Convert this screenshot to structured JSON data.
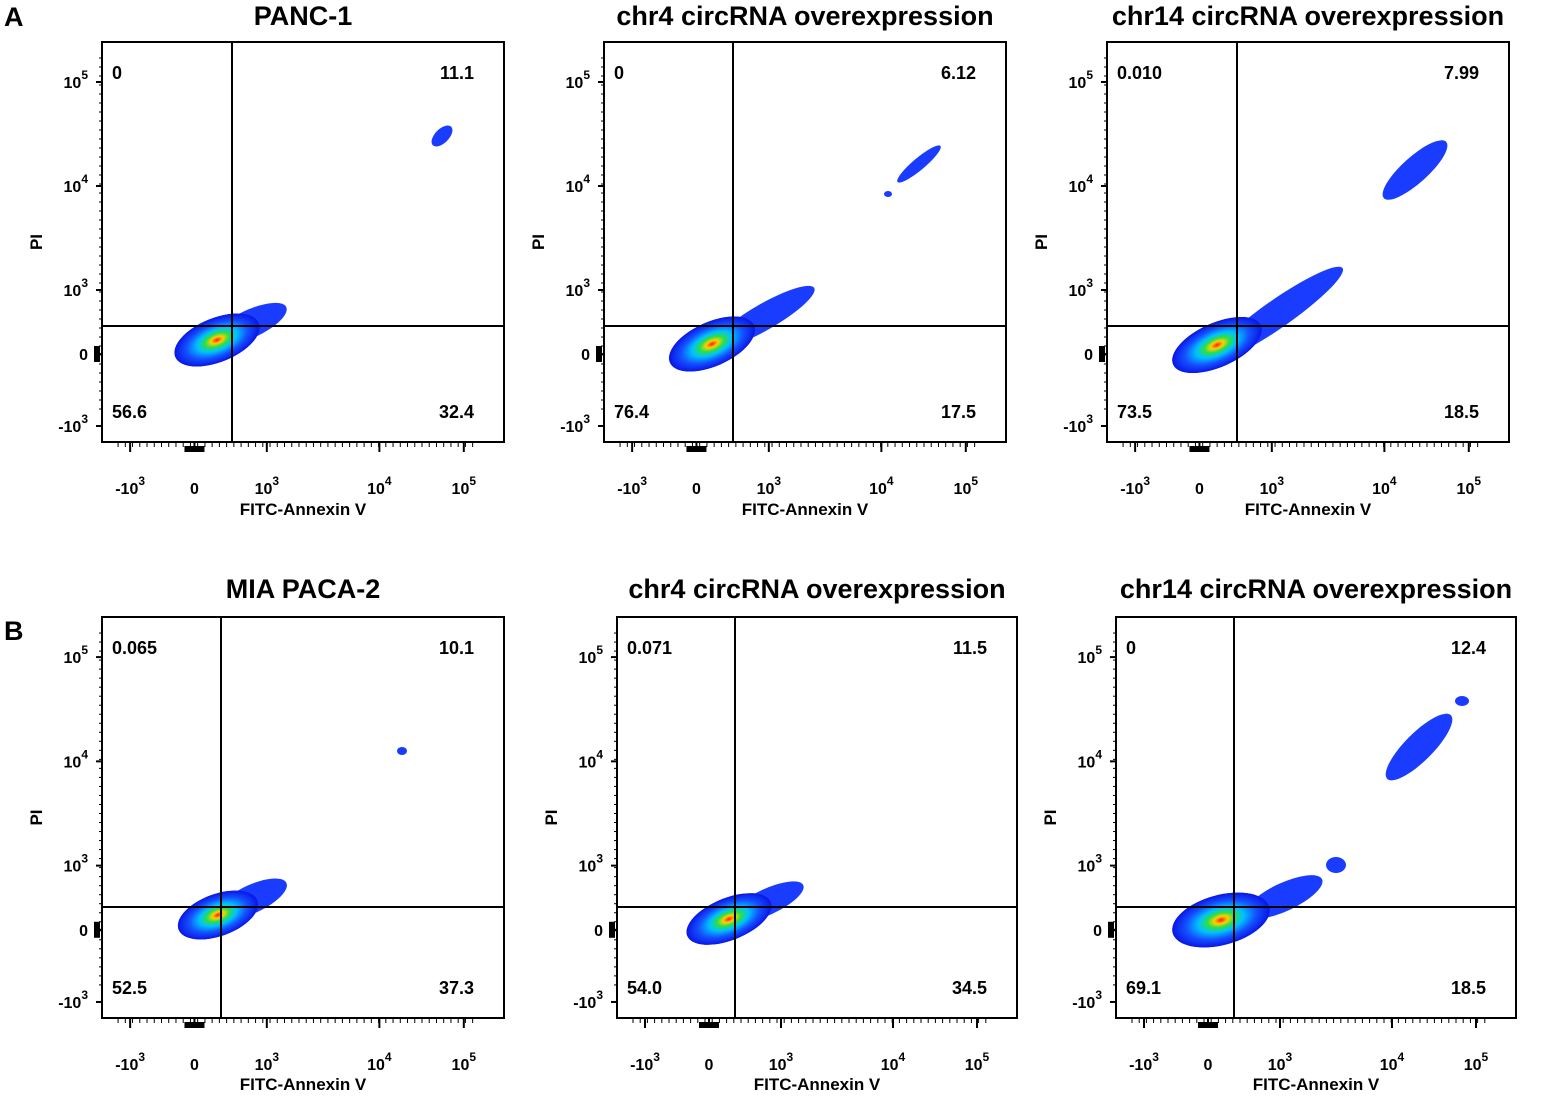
{
  "figure": {
    "panel_labels": [
      "A",
      "B"
    ]
  },
  "chart_data": [
    {
      "type": "scatter",
      "subtype": "flow-cytometry-density-plot",
      "title": "PANC-1",
      "xlabel": "FITC-Annexin V",
      "ylabel": "PI",
      "x_ticks": [
        "-10^3",
        "0",
        "10^3",
        "10^4",
        "10^5"
      ],
      "y_ticks": [
        "10^5",
        "10^4",
        "10^3",
        "0",
        "-10^3"
      ],
      "quadrants": {
        "upper_left": "0",
        "upper_right": "11.1",
        "lower_left": "56.6",
        "lower_right": "32.4"
      }
    },
    {
      "type": "scatter",
      "subtype": "flow-cytometry-density-plot",
      "title": "chr4 circRNA  overexpression",
      "xlabel": "FITC-Annexin V",
      "ylabel": "PI",
      "x_ticks": [
        "-10^3",
        "0",
        "10^3",
        "10^4",
        "10^5"
      ],
      "y_ticks": [
        "10^5",
        "10^4",
        "10^3",
        "0",
        "-10^3"
      ],
      "quadrants": {
        "upper_left": "0",
        "upper_right": "6.12",
        "lower_left": "76.4",
        "lower_right": "17.5"
      }
    },
    {
      "type": "scatter",
      "subtype": "flow-cytometry-density-plot",
      "title": "chr14 circRNA overexpression",
      "xlabel": "FITC-Annexin V",
      "ylabel": "PI",
      "x_ticks": [
        "-10^3",
        "0",
        "10^3",
        "10^4",
        "10^5"
      ],
      "y_ticks": [
        "10^5",
        "10^4",
        "10^3",
        "0",
        "-10^3"
      ],
      "quadrants": {
        "upper_left": "0.010",
        "upper_right": "7.99",
        "lower_left": "73.5",
        "lower_right": "18.5"
      }
    },
    {
      "type": "scatter",
      "subtype": "flow-cytometry-density-plot",
      "title": "MIA PACA-2",
      "xlabel": "FITC-Annexin V",
      "ylabel": "PI",
      "x_ticks": [
        "-10^3",
        "0",
        "10^3",
        "10^4",
        "10^5"
      ],
      "y_ticks": [
        "10^5",
        "10^4",
        "10^3",
        "0",
        "-10^3"
      ],
      "quadrants": {
        "upper_left": "0.065",
        "upper_right": "10.1",
        "lower_left": "52.5",
        "lower_right": "37.3"
      }
    },
    {
      "type": "scatter",
      "subtype": "flow-cytometry-density-plot",
      "title": "chr4 circRNA overexpression",
      "xlabel": "FITC-Annexin V",
      "ylabel": "PI",
      "x_ticks": [
        "-10^3",
        "0",
        "10^3",
        "10^4",
        "10^5"
      ],
      "y_ticks": [
        "10^5",
        "10^4",
        "10^3",
        "0",
        "-10^3"
      ],
      "quadrants": {
        "upper_left": "0.071",
        "upper_right": "11.5",
        "lower_left": "54.0",
        "lower_right": "34.5"
      }
    },
    {
      "type": "scatter",
      "subtype": "flow-cytometry-density-plot",
      "title": "chr14 circRNA overexpression",
      "xlabel": "FITC-Annexin V",
      "ylabel": "PI",
      "x_ticks": [
        "-10^3",
        "0",
        "10^3",
        "10^4",
        "10^5"
      ],
      "y_ticks": [
        "10^5",
        "10^4",
        "10^3",
        "0",
        "-10^3"
      ],
      "quadrants": {
        "upper_left": "0",
        "upper_right": "12.4",
        "lower_left": "69.1",
        "lower_right": "18.5"
      }
    }
  ]
}
